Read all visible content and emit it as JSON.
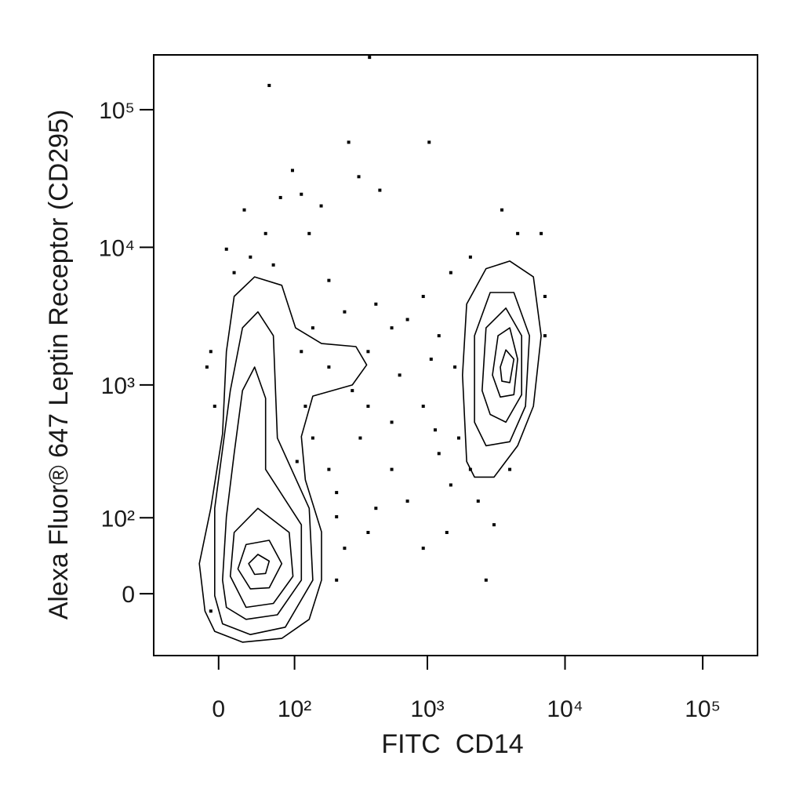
{
  "chart_data": {
    "type": "contour",
    "x_label": "FITC  CD14",
    "y_label": "Alexa Fluor® 647 Leptin Receptor (CD295)",
    "xscale": "biexponential",
    "yscale": "biexponential",
    "xlim": [
      -80,
      250000
    ],
    "ylim": [
      -75,
      250000
    ],
    "xticks": [
      0,
      {
        "value": 100,
        "label": "10²"
      },
      {
        "value": 1000,
        "label": "10³"
      },
      {
        "value": 10000,
        "label": "10⁴"
      },
      {
        "value": 100000,
        "label": "10⁵"
      }
    ],
    "yticks": [
      0,
      {
        "value": 100,
        "label": "10²"
      },
      {
        "value": 1000,
        "label": "10³"
      },
      {
        "value": 10000,
        "label": "10⁴"
      },
      {
        "value": 100000,
        "label": "10⁵"
      }
    ],
    "color": "#000000",
    "contours": [
      {
        "x": [
          -14,
          -20,
          -8,
          4,
          8,
          16,
          39,
          77,
          102,
          165,
          300,
          360,
          282,
          141,
          114,
          123,
          165,
          165,
          132,
          77,
          25,
          -4
        ],
        "y": [
          -18,
          32,
          120,
          440,
          1750,
          4400,
          6100,
          5300,
          2600,
          2000,
          1900,
          1400,
          1000,
          830,
          420,
          200,
          75,
          14,
          -27,
          -50,
          -55,
          -41
        ]
      },
      {
        "x": [
          -4,
          -4,
          12,
          25,
          43,
          64,
          70,
          132,
          141,
          83,
          34,
          4
        ],
        "y": [
          -2,
          120,
          910,
          2600,
          3400,
          2280,
          410,
          120,
          14,
          -36,
          -45,
          -32
        ]
      },
      {
        "x": [
          4,
          8,
          16,
          25,
          39,
          53,
          53,
          114,
          114,
          70,
          29,
          8
        ],
        "y": [
          14,
          102,
          315,
          910,
          1350,
          800,
          240,
          87,
          14,
          -22,
          -27,
          -14
        ]
      },
      {
        "x": [
          12,
          16,
          43,
          90,
          97,
          64,
          29
        ],
        "y": [
          18,
          74,
          120,
          74,
          18,
          -10,
          -14
        ]
      },
      {
        "x": [
          20,
          29,
          58,
          77,
          58,
          34
        ],
        "y": [
          26,
          56,
          62,
          32,
          6,
          5
        ]
      },
      {
        "x": [
          32,
          43,
          58,
          53,
          39
        ],
        "y": [
          32,
          43,
          35,
          21,
          20
        ]
      },
      {
        "x": [
          1930,
          1800,
          1930,
          2670,
          3970,
          5890,
          6710,
          5890,
          4530,
          3050,
          2200
        ],
        "y": [
          275,
          1180,
          3870,
          7000,
          7950,
          6100,
          2280,
          700,
          360,
          210,
          210
        ]
      },
      {
        "x": [
          2200,
          2200,
          2860,
          4250,
          5520,
          5160,
          3970,
          2670
        ],
        "y": [
          535,
          2280,
          4700,
          4700,
          2280,
          700,
          385,
          360
        ]
      },
      {
        "x": [
          2500,
          2670,
          3720,
          4840,
          4840,
          3720,
          2860
        ],
        "y": [
          910,
          2600,
          3620,
          2280,
          850,
          535,
          610
        ]
      },
      {
        "x": [
          2970,
          3260,
          3970,
          4530,
          4250,
          3390
        ],
        "y": [
          1180,
          2280,
          2600,
          1540,
          850,
          817
        ]
      },
      {
        "x": [
          3390,
          3720,
          4250,
          3970,
          3480
        ],
        "y": [
          1350,
          1800,
          1540,
          1040,
          1065
        ]
      }
    ],
    "points": {
      "x": [
        58,
        378,
        265,
        1030,
        96,
        315,
        450,
        75,
        27,
        164,
        114,
        8,
        16,
        34,
        53,
        64,
        132,
        188,
        247,
        421,
        550,
        716,
        1214,
        933,
        1480,
        2055,
        3480,
        4530,
        6710,
        7150,
        7150,
        -8,
        -12,
        -4,
        123,
        141,
        188,
        105,
        215,
        323,
        550,
        933,
        1214,
        716,
        421,
        247,
        215,
        369,
        933,
        1385,
        2340,
        3050,
        2670,
        3970,
        1480,
        550,
        282,
        188,
        369,
        1065,
        1585,
        114,
        141,
        369,
        628,
        1140,
        1690,
        2055,
        215,
        -8
      ],
      "y": [
        150000,
        240000,
        58000,
        58000,
        36200,
        32600,
        26000,
        23000,
        18700,
        20000,
        24300,
        9700,
        6550,
        8500,
        12600,
        7450,
        12600,
        5750,
        3400,
        3870,
        2600,
        2990,
        2280,
        4400,
        6550,
        8500,
        18700,
        12600,
        12600,
        4400,
        2280,
        1750,
        1350,
        700,
        700,
        410,
        240,
        275,
        160,
        410,
        535,
        700,
        315,
        137,
        120,
        51,
        14,
        74,
        51,
        74,
        137,
        87,
        14,
        240,
        183,
        240,
        910,
        1350,
        1750,
        1540,
        1350,
        1750,
        2600,
        700,
        1180,
        470,
        410,
        240,
        102,
        -18
      ]
    }
  }
}
